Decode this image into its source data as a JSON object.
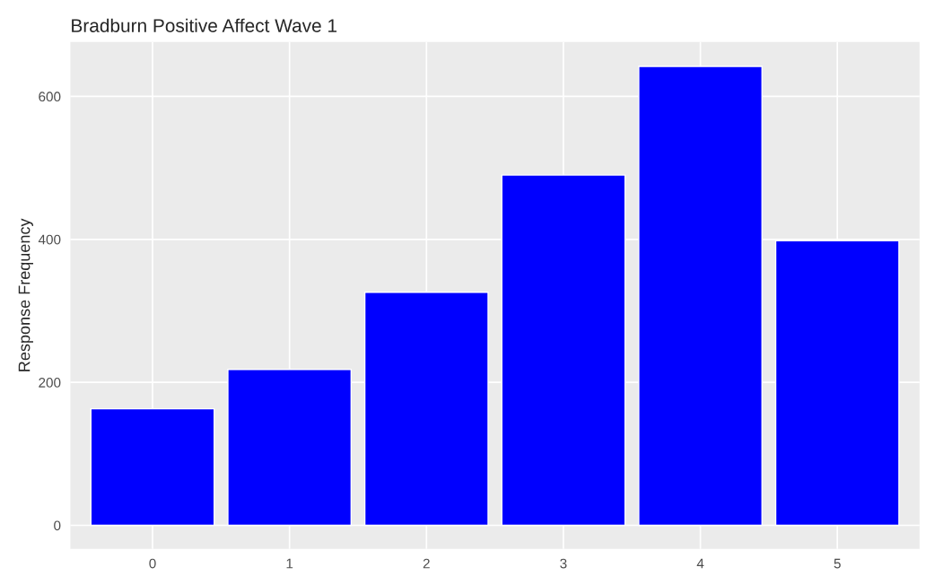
{
  "chart_data": {
    "type": "bar",
    "title": "Bradburn Positive Affect Wave 1",
    "ylabel": "Response Frequency",
    "categories": [
      "0",
      "1",
      "2",
      "3",
      "4",
      "5"
    ],
    "values": [
      163,
      218,
      326,
      490,
      642,
      398
    ],
    "color": "#0000ff",
    "ylim": [
      -33,
      676
    ],
    "yticks": [
      0,
      200,
      400,
      600
    ],
    "grid": true,
    "legend": false
  }
}
